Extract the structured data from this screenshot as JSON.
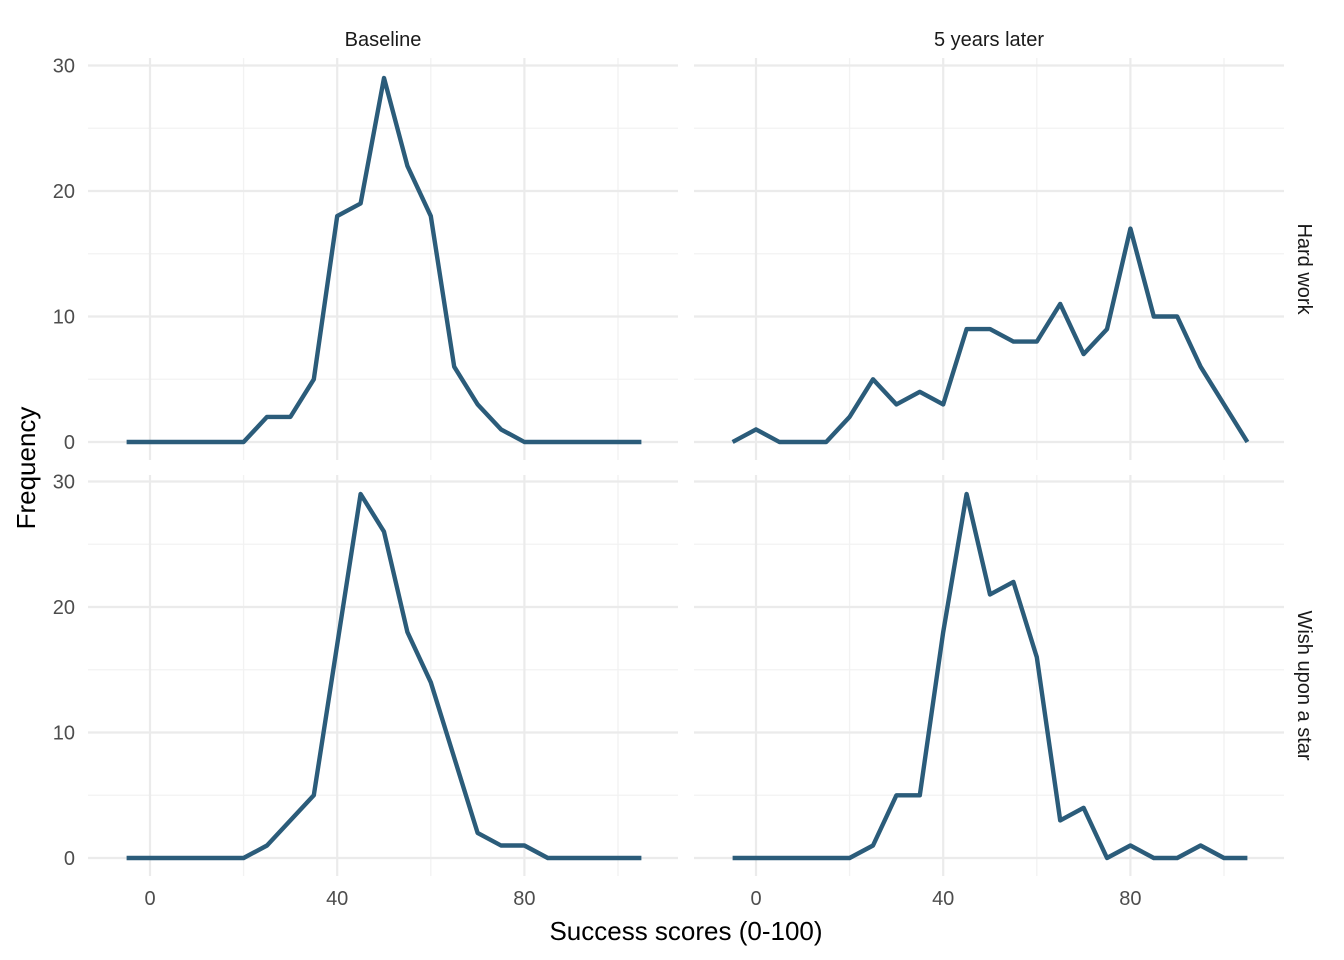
{
  "chart_data": {
    "type": "line",
    "xlabel": "Success scores (0-100)",
    "ylabel": "Frequency",
    "column_facets": [
      "Baseline",
      "5 years later"
    ],
    "row_facets": [
      "Hard work",
      "Wish upon a star"
    ],
    "xlim": [
      -5,
      105
    ],
    "ylim": [
      0,
      30
    ],
    "x_ticks": [
      0,
      40,
      80
    ],
    "y_ticks": [
      0,
      10,
      20,
      30
    ],
    "grid": true,
    "line_color": "#2b5c7a",
    "x": [
      -5,
      0,
      5,
      10,
      15,
      20,
      25,
      30,
      35,
      40,
      45,
      50,
      55,
      60,
      65,
      70,
      75,
      80,
      85,
      90,
      95,
      100,
      105
    ],
    "panels": [
      {
        "row": "Hard work",
        "col": "Baseline",
        "values": [
          0,
          0,
          0,
          0,
          0,
          0,
          2,
          2,
          5,
          18,
          19,
          29,
          22,
          18,
          6,
          3,
          1,
          0,
          0,
          0,
          0,
          0,
          0
        ]
      },
      {
        "row": "Hard work",
        "col": "5 years later",
        "values": [
          0,
          1,
          0,
          0,
          0,
          2,
          5,
          3,
          4,
          3,
          9,
          9,
          8,
          8,
          11,
          7,
          9,
          17,
          10,
          10,
          6,
          3,
          0
        ]
      },
      {
        "row": "Wish upon a star",
        "col": "Baseline",
        "values": [
          0,
          0,
          0,
          0,
          0,
          0,
          1,
          3,
          5,
          17,
          29,
          26,
          18,
          14,
          8,
          2,
          1,
          1,
          0,
          0,
          0,
          0,
          0
        ]
      },
      {
        "row": "Wish upon a star",
        "col": "5 years later",
        "values": [
          0,
          0,
          0,
          0,
          0,
          0,
          1,
          5,
          5,
          18,
          29,
          21,
          22,
          16,
          3,
          4,
          0,
          1,
          0,
          0,
          1,
          0,
          0
        ]
      }
    ]
  }
}
